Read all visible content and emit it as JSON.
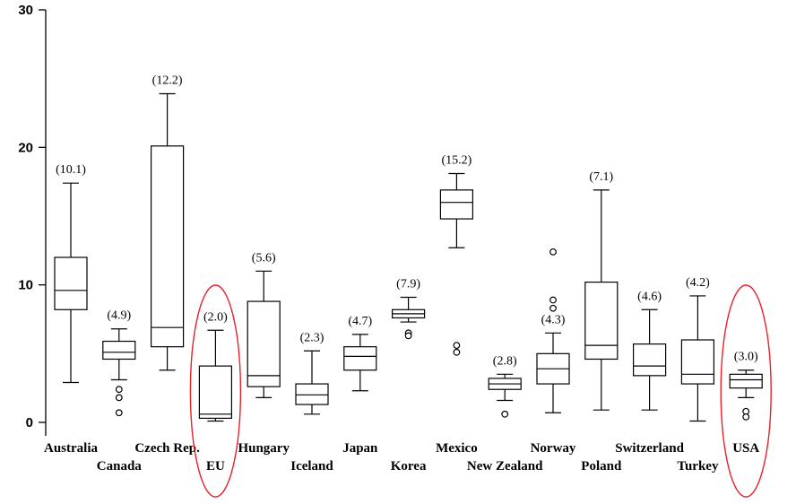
{
  "chart_data": {
    "type": "box",
    "ylim": [
      0,
      30
    ],
    "yticks": [
      0,
      10,
      20,
      30
    ],
    "grid": false,
    "highlight_color": "#e8202a",
    "categories": [
      "Australia",
      "Canada",
      "Czech  Rep.",
      "EU",
      "Hungary",
      "Iceland",
      "Japan",
      "Korea",
      "Mexico",
      "New Zealand",
      "Norway",
      "Poland",
      "Switzerland",
      "Turkey",
      "USA"
    ],
    "label_rows": [
      0,
      1,
      0,
      1,
      0,
      1,
      0,
      1,
      0,
      1,
      0,
      1,
      0,
      1,
      0
    ],
    "mean_labels": [
      "(10.1)",
      "(4.9)",
      "(12.2)",
      "(2.0)",
      "(5.6)",
      "(2.3)",
      "(4.7)",
      "(7.9)",
      "(15.2)",
      "(2.8)",
      "(4.3)",
      "(7.1)",
      "(4.6)",
      "(4.2)",
      "(3.0)"
    ],
    "boxes": [
      {
        "whisker_low": 2.9,
        "q1": 8.2,
        "median": 9.6,
        "q3": 12.0,
        "whisker_high": 17.4,
        "outliers": []
      },
      {
        "whisker_low": 3.1,
        "q1": 4.6,
        "median": 5.1,
        "q3": 5.9,
        "whisker_high": 6.8,
        "outliers": [
          2.4,
          1.8,
          0.7
        ]
      },
      {
        "whisker_low": 3.8,
        "q1": 5.5,
        "median": 6.9,
        "q3": 20.1,
        "whisker_high": 23.9,
        "outliers": []
      },
      {
        "whisker_low": 0.1,
        "q1": 0.3,
        "median": 0.6,
        "q3": 4.1,
        "whisker_high": 6.7,
        "outliers": []
      },
      {
        "whisker_low": 1.8,
        "q1": 2.6,
        "median": 3.4,
        "q3": 8.8,
        "whisker_high": 11.0,
        "outliers": []
      },
      {
        "whisker_low": 0.6,
        "q1": 1.3,
        "median": 2.0,
        "q3": 2.8,
        "whisker_high": 5.2,
        "outliers": []
      },
      {
        "whisker_low": 2.3,
        "q1": 3.8,
        "median": 4.8,
        "q3": 5.5,
        "whisker_high": 6.4,
        "outliers": []
      },
      {
        "whisker_low": 7.3,
        "q1": 7.6,
        "median": 7.9,
        "q3": 8.2,
        "whisker_high": 9.1,
        "outliers": [
          6.5,
          6.3
        ]
      },
      {
        "whisker_low": 12.7,
        "q1": 14.8,
        "median": 16.0,
        "q3": 16.9,
        "whisker_high": 18.1,
        "outliers": [
          5.6,
          5.1
        ]
      },
      {
        "whisker_low": 1.6,
        "q1": 2.4,
        "median": 2.8,
        "q3": 3.2,
        "whisker_high": 3.5,
        "outliers": [
          0.6
        ]
      },
      {
        "whisker_low": 0.7,
        "q1": 2.8,
        "median": 3.9,
        "q3": 5.0,
        "whisker_high": 6.5,
        "outliers": [
          12.4,
          8.9,
          8.3
        ]
      },
      {
        "whisker_low": 0.9,
        "q1": 4.6,
        "median": 5.6,
        "q3": 10.2,
        "whisker_high": 16.9,
        "outliers": []
      },
      {
        "whisker_low": 0.9,
        "q1": 3.4,
        "median": 4.1,
        "q3": 5.7,
        "whisker_high": 8.2,
        "outliers": []
      },
      {
        "whisker_low": 0.1,
        "q1": 2.8,
        "median": 3.5,
        "q3": 6.0,
        "whisker_high": 9.2,
        "outliers": []
      },
      {
        "whisker_low": 1.8,
        "q1": 2.5,
        "median": 3.1,
        "q3": 3.5,
        "whisker_high": 3.8,
        "outliers": [
          0.8,
          0.4
        ]
      }
    ],
    "highlighted": [
      "EU",
      "USA"
    ]
  }
}
